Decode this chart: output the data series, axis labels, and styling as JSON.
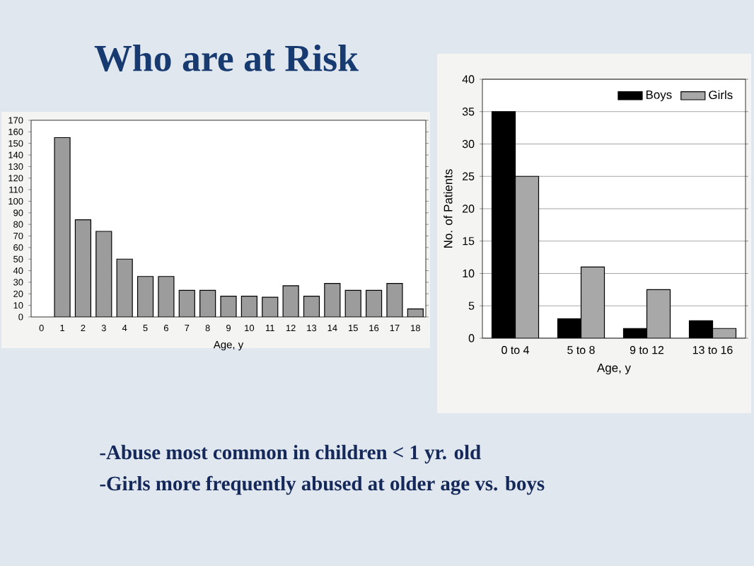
{
  "chart_data": [
    {
      "type": "bar",
      "title": "Who are at Risk",
      "xlabel": "Age, y",
      "categories": [
        "0",
        "1",
        "2",
        "3",
        "4",
        "5",
        "6",
        "7",
        "8",
        "9",
        "10",
        "11",
        "12",
        "13",
        "14",
        "15",
        "16",
        "17",
        "18"
      ],
      "values": [
        null,
        155,
        84,
        74,
        50,
        35,
        35,
        23,
        23,
        18,
        18,
        17,
        27,
        18,
        29,
        23,
        23,
        29,
        7
      ],
      "color": "#9c9c9c",
      "ylim": [
        0,
        170
      ],
      "yticks": [
        0,
        10,
        20,
        30,
        40,
        50,
        60,
        70,
        80,
        90,
        100,
        110,
        120,
        130,
        140,
        150,
        160,
        170
      ],
      "annotations": [
        "-Abuse most common in children < 1 yr. old"
      ]
    },
    {
      "type": "bar",
      "xlabel": "Age, y",
      "ylabel": "No. of Patients",
      "categories": [
        "0 to 4",
        "5 to 8",
        "9 to 12",
        "13 to 16"
      ],
      "series": [
        {
          "name": "Boys",
          "color": "#000000",
          "values": [
            35,
            3,
            1.5,
            2.7
          ]
        },
        {
          "name": "Girls",
          "color": "#a8a8a8",
          "values": [
            25,
            11,
            7.5,
            1.5
          ]
        }
      ],
      "ylim": [
        0,
        40
      ],
      "yticks": [
        0,
        5,
        10,
        15,
        20,
        25,
        30,
        35,
        40
      ],
      "grid": "y",
      "legend": "top right",
      "annotations": [
        "-Girls more frequently abused at older age vs. boys"
      ]
    }
  ]
}
